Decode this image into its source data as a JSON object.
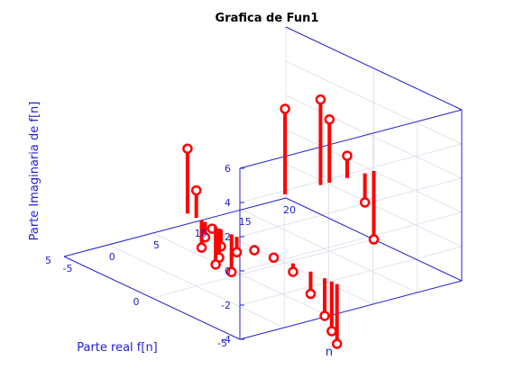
{
  "chart_data": {
    "type": "stem3d",
    "title": "Grafica de Fun1",
    "xlabel": "Parte real f[n]",
    "ylabel": "n",
    "zlabel": "Parte Imaginaria de f[n]",
    "xlim": [
      -5,
      5
    ],
    "ylim": [
      -5,
      20
    ],
    "zlim": [
      -4,
      6
    ],
    "x_ticks": [
      "-5",
      "0",
      "5"
    ],
    "y_ticks": [
      "-5",
      "0",
      "5",
      "10",
      "15",
      "20"
    ],
    "z_ticks": [
      "-4",
      "-2",
      "0",
      "2",
      "4",
      "6"
    ],
    "grid": true,
    "marker": "circle",
    "color": "#ff0000",
    "points": [
      {
        "n": 0,
        "re": -0.9,
        "im": -0.2
      },
      {
        "n": 0,
        "re": -0.5,
        "im": -0.9
      },
      {
        "n": 0,
        "re": -1.4,
        "im": -1.0
      },
      {
        "n": 0,
        "re": -0.3,
        "im": -1.6
      },
      {
        "n": 0,
        "re": -1.3,
        "im": -1.7
      },
      {
        "n": 0,
        "re": -1.1,
        "im": -2.2
      },
      {
        "n": 0,
        "re": -2.0,
        "im": -2.2
      },
      {
        "n": 0,
        "re": -2.3,
        "im": -0.9
      },
      {
        "n": 0,
        "re": -3.3,
        "im": -0.3
      },
      {
        "n": 0,
        "re": -4.4,
        "im": -0.2
      },
      {
        "n": 0,
        "re": -5.5,
        "im": -0.5
      },
      {
        "n": 0,
        "re": -6.5,
        "im": -1.3
      },
      {
        "n": 0,
        "re": -7.3,
        "im": -2.2
      },
      {
        "n": 0,
        "re": -7.7,
        "im": -2.9
      },
      {
        "n": 0,
        "re": -8.0,
        "im": -3.5
      },
      {
        "n": 0,
        "re": 0.0,
        "im": 1.6
      },
      {
        "n": 0,
        "re": 0.5,
        "im": 3.8
      },
      {
        "n": 10,
        "re": 0.0,
        "im": 5.0
      },
      {
        "n": 14,
        "re": 0.0,
        "im": 5.0
      },
      {
        "n": 15,
        "re": 0.0,
        "im": 3.7
      },
      {
        "n": 17,
        "re": 0.0,
        "im": 1.3
      },
      {
        "n": 19,
        "re": 0.0,
        "im": -1.7
      },
      {
        "n": 20,
        "re": 0.0,
        "im": -4.0
      }
    ]
  }
}
